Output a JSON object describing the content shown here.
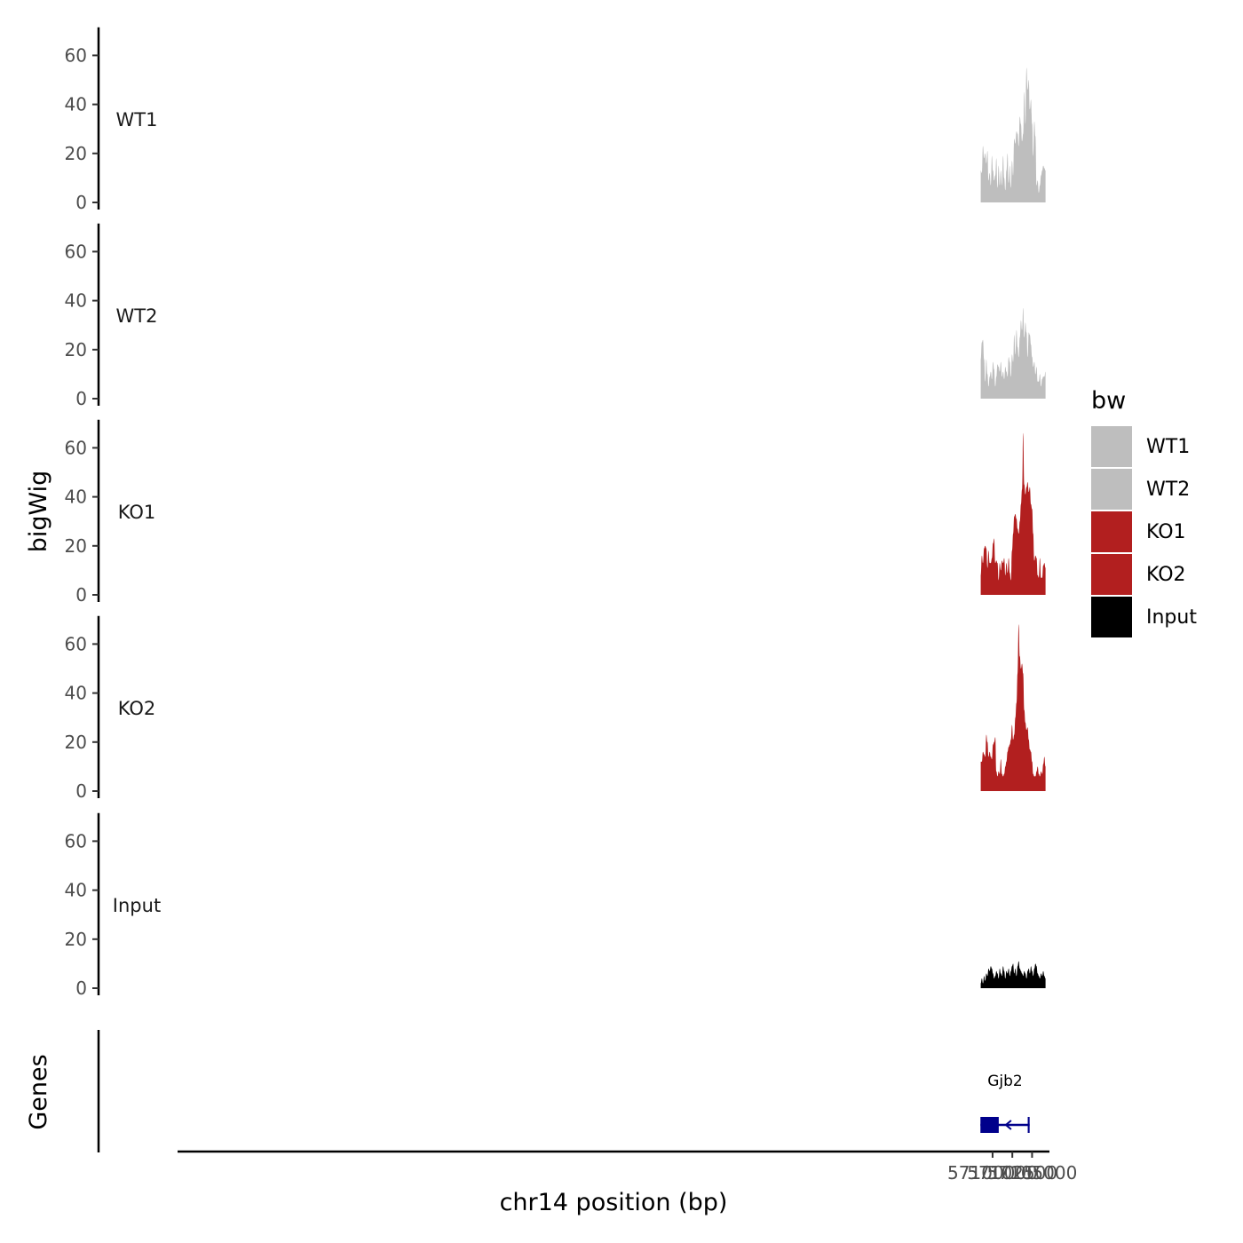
{
  "chart_data": {
    "type": "area",
    "region": "chr14",
    "ylabel": "bigWig",
    "gene_panel_label": "Genes",
    "xlabel": "chr14 position (bp)",
    "xlim": [
      56996800,
      57107200
    ],
    "ylim": [
      0,
      70
    ],
    "yticks": [
      0,
      20,
      40,
      60
    ],
    "ytick_labels": [
      "0",
      "20",
      "40",
      "60"
    ],
    "xticks": [
      57100000,
      57102500,
      57105000
    ],
    "xtick_labels": [
      "57100000",
      "57102500",
      "57105000"
    ],
    "legend": {
      "title": "bw",
      "entries": [
        {
          "label": "WT1",
          "color": "#bebebe"
        },
        {
          "label": "WT2",
          "color": "#bebebe"
        },
        {
          "label": "KO1",
          "color": "#b21f1f"
        },
        {
          "label": "KO2",
          "color": "#b21f1f"
        },
        {
          "label": "Input",
          "color": "#000000"
        }
      ]
    },
    "series": [
      {
        "name": "WT1",
        "color": "#bebebe",
        "x_start": 57098500,
        "x_end": 57106700,
        "values": [
          13,
          12,
          23,
          18,
          20,
          16,
          21,
          9,
          12,
          7,
          19,
          13,
          9,
          11,
          18,
          6,
          15,
          7,
          13,
          7,
          19,
          10,
          5,
          13,
          20,
          8,
          15,
          6,
          17,
          11,
          26,
          24,
          29,
          28,
          23,
          35,
          32,
          25,
          28,
          45,
          32,
          55,
          46,
          50,
          38,
          42,
          32,
          19,
          33,
          27,
          7,
          9,
          4,
          7,
          11,
          13,
          15,
          14,
          13
        ]
      },
      {
        "name": "WT2",
        "color": "#bebebe",
        "x_start": 57098500,
        "x_end": 57106700,
        "values": [
          16,
          23,
          24,
          16,
          7,
          16,
          10,
          5,
          9,
          11,
          8,
          15,
          12,
          5,
          9,
          14,
          13,
          11,
          15,
          9,
          11,
          8,
          13,
          11,
          9,
          17,
          15,
          9,
          18,
          15,
          26,
          18,
          28,
          21,
          17,
          25,
          32,
          28,
          37,
          25,
          31,
          27,
          17,
          27,
          26,
          22,
          17,
          13,
          15,
          10,
          13,
          7,
          7,
          10,
          5,
          8,
          9,
          9,
          11
        ]
      },
      {
        "name": "KO1",
        "color": "#b21f1f",
        "x_start": 57098500,
        "x_end": 57106700,
        "values": [
          8,
          16,
          13,
          19,
          20,
          19,
          11,
          18,
          13,
          13,
          15,
          21,
          23,
          13,
          14,
          13,
          6,
          13,
          10,
          14,
          13,
          15,
          8,
          13,
          9,
          15,
          9,
          6,
          18,
          25,
          32,
          33,
          31,
          27,
          25,
          30,
          37,
          43,
          66,
          45,
          41,
          44,
          46,
          42,
          44,
          37,
          35,
          25,
          14,
          16,
          15,
          8,
          7,
          15,
          7,
          7,
          12,
          13,
          11
        ]
      },
      {
        "name": "KO2",
        "color": "#b21f1f",
        "x_start": 57098500,
        "x_end": 57106700,
        "values": [
          12,
          12,
          16,
          15,
          14,
          23,
          20,
          14,
          16,
          14,
          13,
          19,
          20,
          22,
          8,
          6,
          8,
          7,
          13,
          7,
          6,
          7,
          10,
          12,
          16,
          18,
          19,
          21,
          27,
          21,
          23,
          30,
          36,
          48,
          68,
          55,
          50,
          52,
          48,
          33,
          28,
          25,
          26,
          21,
          17,
          16,
          12,
          7,
          6,
          6,
          8,
          10,
          7,
          6,
          8,
          7,
          11,
          14,
          10
        ]
      },
      {
        "name": "Input",
        "color": "#000000",
        "x_start": 57098500,
        "x_end": 57106700,
        "values": [
          2,
          4,
          2,
          5,
          3,
          6,
          5,
          8,
          7,
          9,
          8,
          6,
          4,
          5,
          7,
          6,
          4,
          8,
          6,
          5,
          9,
          7,
          4,
          7,
          6,
          8,
          5,
          7,
          9,
          10,
          6,
          8,
          5,
          9,
          11,
          8,
          7,
          6,
          5,
          7,
          6,
          4,
          7,
          8,
          6,
          9,
          7,
          5,
          8,
          10,
          9,
          6,
          5,
          4,
          6,
          5,
          7,
          5,
          4
        ]
      }
    ],
    "gene": {
      "name": "Gjb2",
      "strand": "-",
      "color": "#00008b",
      "start": 57098460,
      "end": 57104690,
      "exons": [
        [
          57098460,
          57100780
        ],
        [
          57104450,
          57104690
        ]
      ]
    }
  }
}
